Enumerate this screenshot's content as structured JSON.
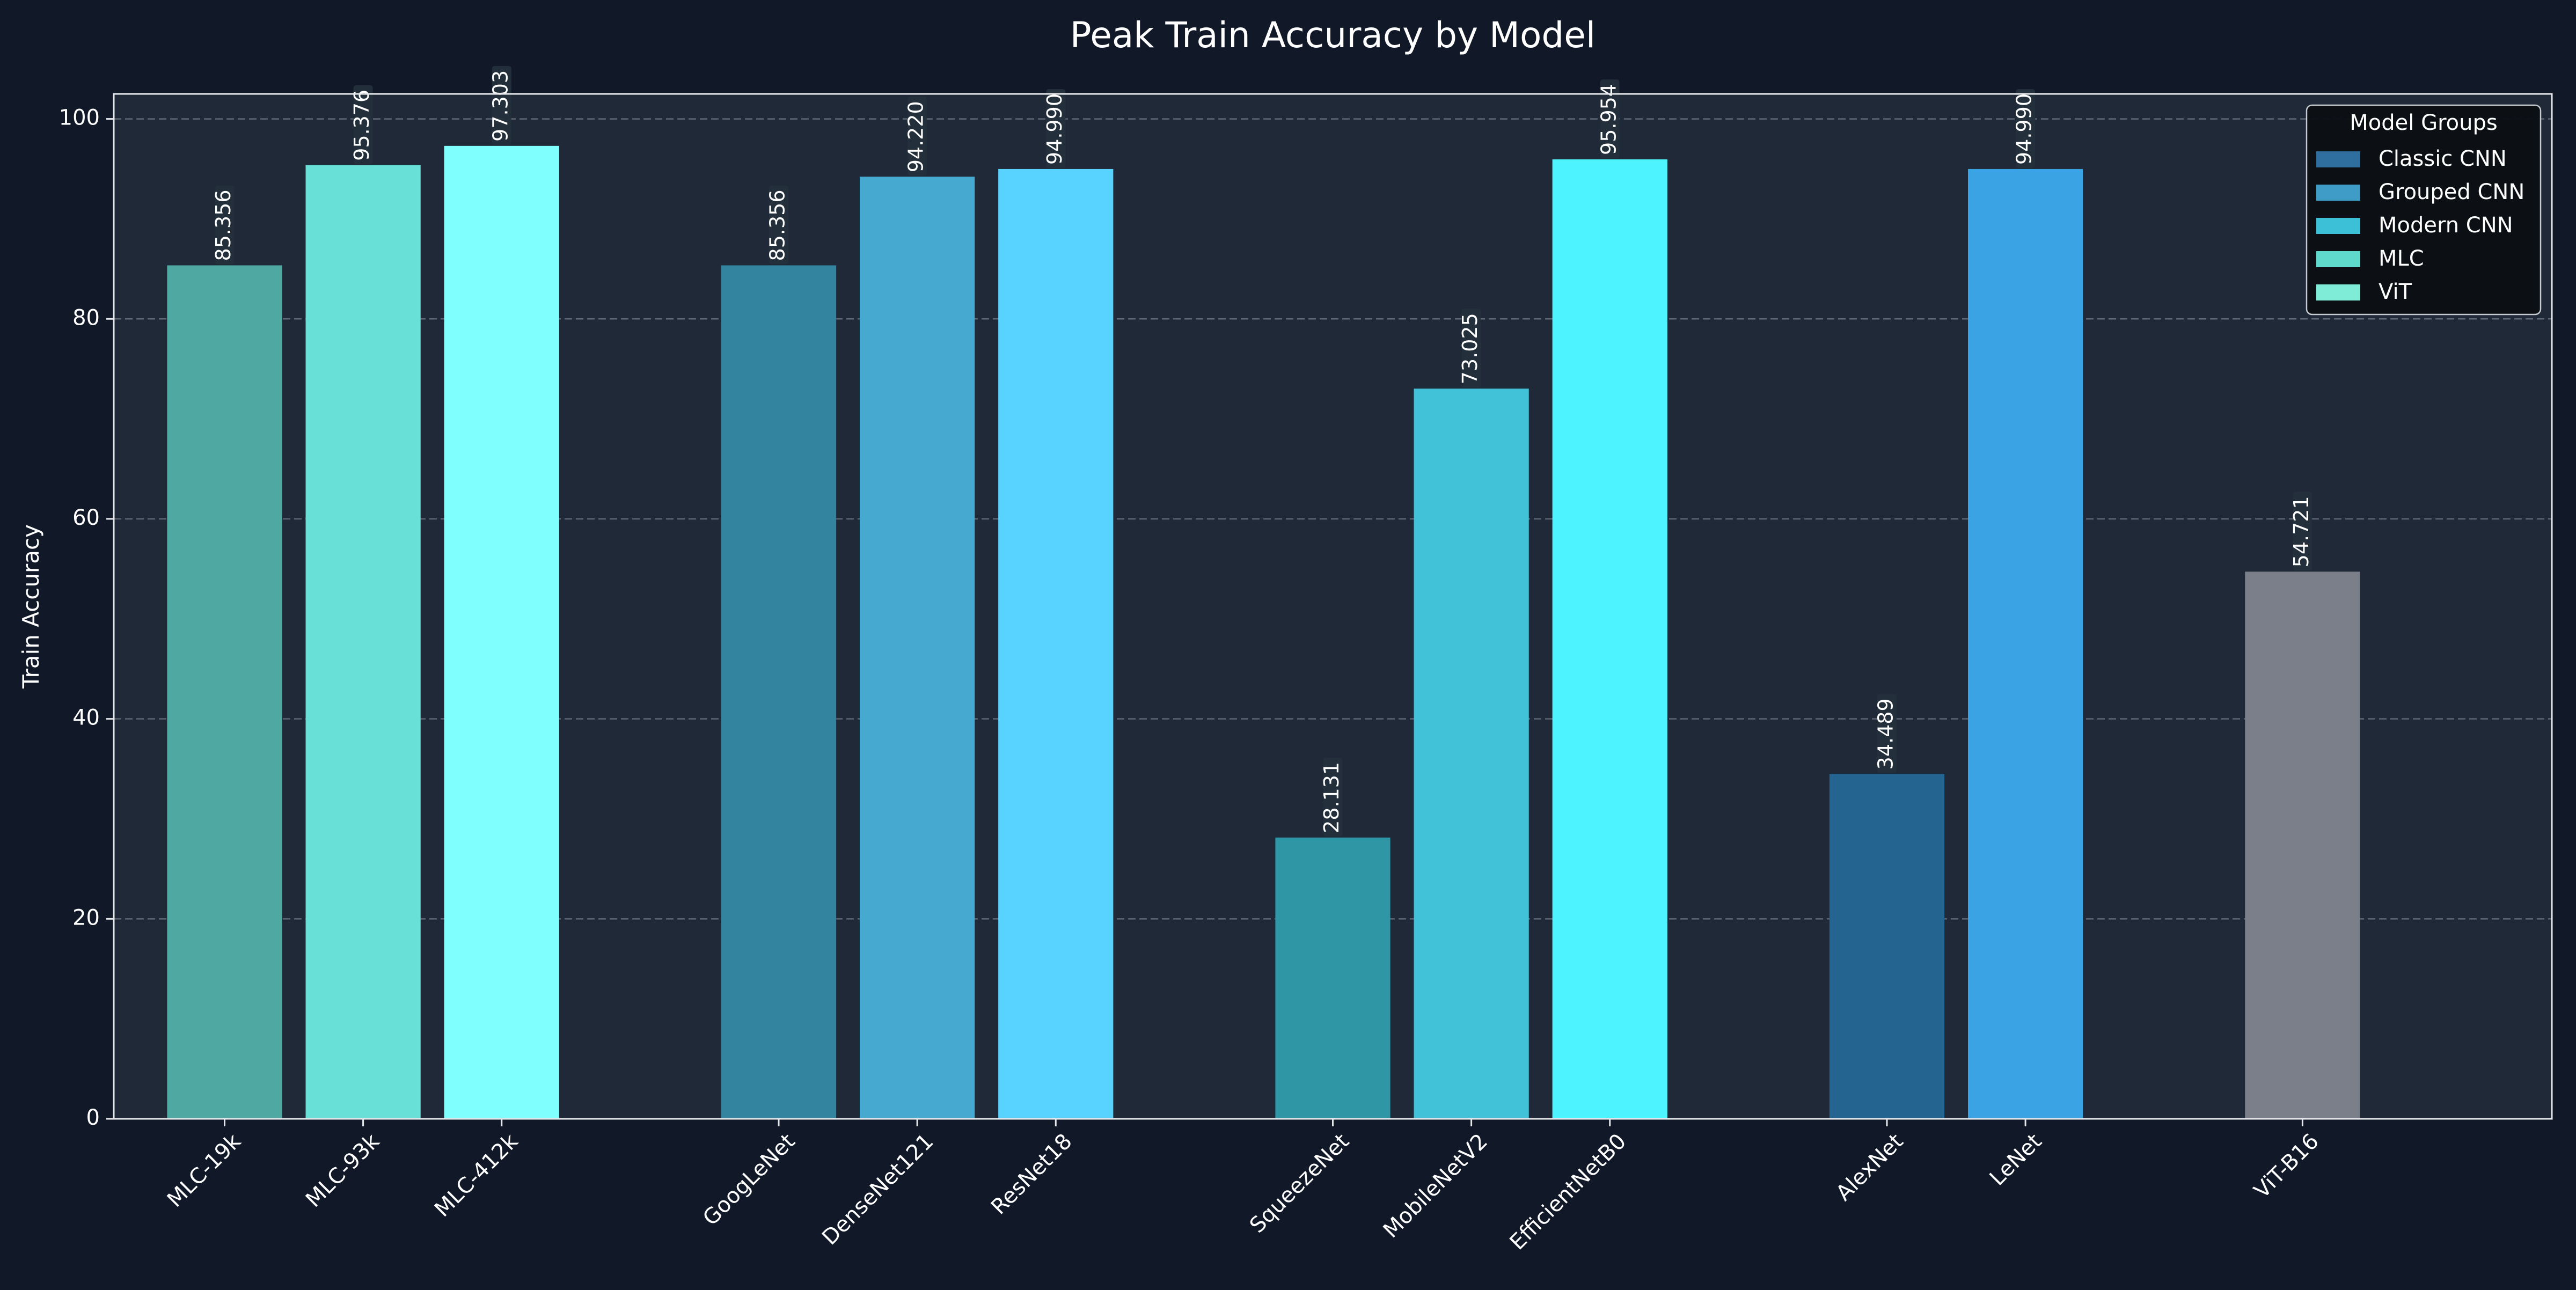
{
  "chart_data": {
    "type": "bar",
    "title": "Peak Train Accuracy by Model",
    "xlabel": "",
    "ylabel": "Train Accuracy",
    "ylim": [
      0,
      102.5
    ],
    "yticks": [
      0,
      20,
      40,
      60,
      80,
      100
    ],
    "grid": true,
    "legend_position": "top-right",
    "legend": {
      "title": "Model Groups",
      "entries": [
        {
          "label": "Classic CNN",
          "color": "#2f6f9f"
        },
        {
          "label": "Grouped CNN",
          "color": "#3f9cc6"
        },
        {
          "label": "Modern CNN",
          "color": "#3cc0d8"
        },
        {
          "label": "MLC",
          "color": "#5fd9cc"
        },
        {
          "label": "ViT",
          "color": "#7eecd6"
        }
      ]
    },
    "categories": [
      "MLC-19k",
      "MLC-93k",
      "MLC-412k",
      "GoogLeNet",
      "DenseNet121",
      "ResNet18",
      "SqueezeNet",
      "MobileNetV2",
      "EfficientNetB0",
      "AlexNet",
      "LeNet",
      "ViT-B16"
    ],
    "values": [
      85.356,
      95.376,
      97.303,
      85.356,
      94.22,
      94.99,
      28.131,
      73.025,
      95.954,
      34.489,
      94.99,
      54.721
    ],
    "value_labels": [
      "85.356",
      "95.376",
      "97.303",
      "85.356",
      "94.220",
      "94.990",
      "28.131",
      "73.025",
      "95.954",
      "34.489",
      "94.990",
      "54.721"
    ],
    "groups": [
      "MLC",
      "MLC",
      "MLC",
      "Grouped CNN",
      "Grouped CNN",
      "Grouped CNN",
      "Modern CNN",
      "Modern CNN",
      "Modern CNN",
      "Classic CNN",
      "Classic CNN",
      "ViT"
    ],
    "bar_colors": [
      "#4fa8a1",
      "#68e0d7",
      "#80ffff",
      "#32849f",
      "#46a9cf",
      "#58d2ff",
      "#2f96a5",
      "#42c2d8",
      "#4df4ff",
      "#236490",
      "#39a3e4",
      "#7a7f8a"
    ],
    "slot_positions": [
      1,
      2,
      3,
      5,
      6,
      7,
      9,
      10,
      11,
      13,
      14,
      16
    ],
    "slot_range": [
      0.2,
      17.8
    ]
  },
  "colors": {
    "page_background": "#111827",
    "plot_background": "#1f2937",
    "axis_color": "#e5e7eb",
    "text_color": "#ffffff",
    "grid_color": "#6b7280",
    "label_box": "#24313c",
    "legend_background": "#0b0f14"
  }
}
